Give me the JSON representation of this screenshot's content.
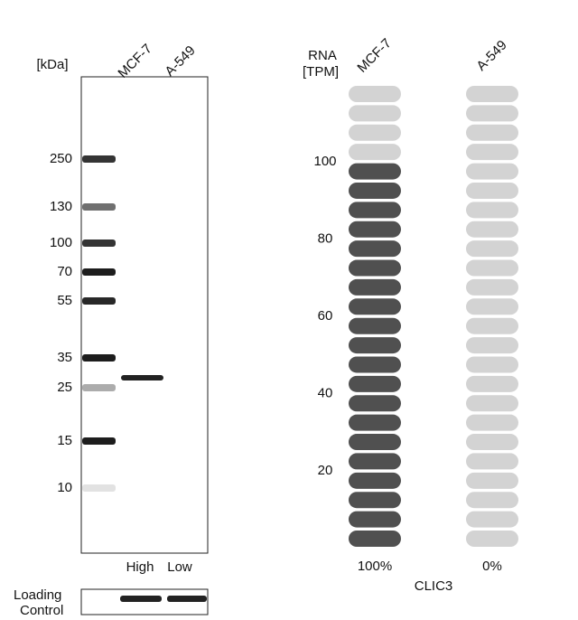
{
  "blot": {
    "unit_label": "[kDa]",
    "lanes": [
      "MCF-7",
      "A-549"
    ],
    "markers": [
      250,
      130,
      100,
      70,
      55,
      35,
      25,
      15,
      10
    ],
    "levels": [
      "High",
      "Low"
    ],
    "loading_control": [
      "Loading",
      "Control"
    ]
  },
  "rna": {
    "axis_title": [
      "RNA",
      "[TPM]"
    ],
    "ylim": [
      0,
      120
    ],
    "yticks": [
      20,
      40,
      60,
      80,
      100
    ],
    "series": [
      {
        "name": "MCF-7",
        "color": "#505050",
        "values": [
          100
        ],
        "value_labels": [
          "100%"
        ]
      },
      {
        "name": "A-549",
        "color": "#505050",
        "values": [
          0
        ],
        "value_labels": [
          "0%"
        ]
      }
    ],
    "empty_color": "#d3d3d3",
    "gene": "CLIC3"
  }
}
